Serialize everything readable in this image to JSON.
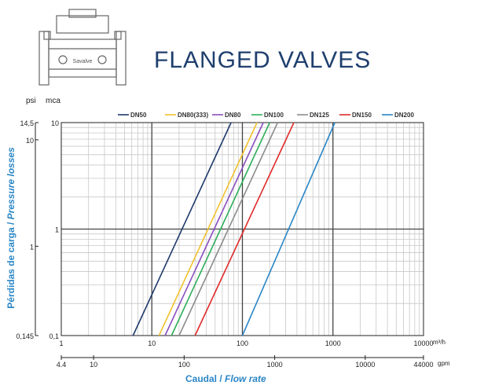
{
  "header": {
    "title": "FLANGED VALVES"
  },
  "product_image": {
    "icon": "flanged-valve-icon",
    "brand_label": "Savalve"
  },
  "chart_data": {
    "type": "line",
    "title": "FLANGED VALVES",
    "xlabel": "Caudal / Flow rate",
    "xlabel_parts": {
      "es": "Caudal /",
      "en": "Flow rate"
    },
    "ylabel": "Pérdidas de carga / Pressure losses",
    "ylabel_parts": {
      "es": "Pérdidas de carga /",
      "en": "Pressure losses"
    },
    "x_scale": "log",
    "y_scale": "log",
    "xlim": [
      1,
      10000
    ],
    "ylim": [
      0.1,
      10
    ],
    "x_unit": "m³/h",
    "x2_unit": "gpm",
    "y_unit": "mca",
    "y2_unit": "psi",
    "grid": true,
    "legend_position": "top",
    "x_ticks": [
      "1",
      "10",
      "100",
      "1000",
      "10000"
    ],
    "x2_ticks": [
      "4.4",
      "10",
      "100",
      "1000",
      "10000",
      "44000"
    ],
    "y_ticks": [
      "0,1",
      "1",
      "10"
    ],
    "y2_ticks": [
      "0,145",
      "1",
      "10",
      "14,5"
    ],
    "series": [
      {
        "name": "DN50",
        "color": "#1f3a6b",
        "x": [
          6.2,
          75
        ],
        "y": [
          0.1,
          10
        ]
      },
      {
        "name": "DN80(333)",
        "color": "#f2c12e",
        "x": [
          12,
          145
        ],
        "y": [
          0.1,
          10
        ]
      },
      {
        "name": "DN80",
        "color": "#8a4fbf",
        "x": [
          14,
          170
        ],
        "y": [
          0.1,
          10
        ]
      },
      {
        "name": "DN100",
        "color": "#2eae5a",
        "x": [
          16.5,
          200
        ],
        "y": [
          0.1,
          10
        ]
      },
      {
        "name": "DN125",
        "color": "#8c8c8c",
        "x": [
          20,
          245
        ],
        "y": [
          0.1,
          10
        ]
      },
      {
        "name": "DN150",
        "color": "#e02a2a",
        "x": [
          30,
          370
        ],
        "y": [
          0.1,
          10
        ]
      },
      {
        "name": "DN200",
        "color": "#2a86c7",
        "x": [
          100,
          1050
        ],
        "y": [
          0.1,
          10
        ]
      }
    ]
  }
}
